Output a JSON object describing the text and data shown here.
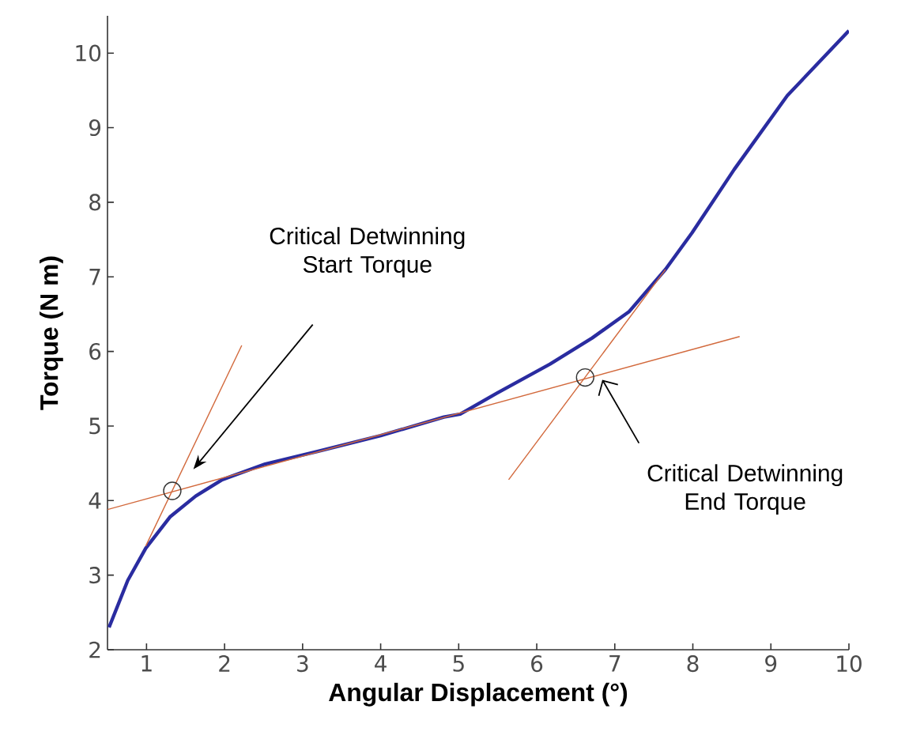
{
  "chart_data": {
    "type": "line",
    "xlabel": "Angular Displacement (°)",
    "ylabel": "Torque (N m)",
    "xlim": [
      0.5,
      10
    ],
    "ylim": [
      2,
      10.5
    ],
    "xticks": [
      1,
      2,
      3,
      4,
      5,
      6,
      7,
      8,
      9,
      10
    ],
    "yticks": [
      2,
      3,
      4,
      5,
      6,
      7,
      8,
      9,
      10
    ],
    "grid": false,
    "series": [
      {
        "color": "#2a2ca0",
        "x": [
          0.52,
          0.76,
          0.99,
          1.3,
          1.63,
          1.97,
          2.52,
          3.19,
          4.0,
          4.81,
          5.02,
          5.49,
          6.17,
          6.71,
          7.18,
          7.65,
          7.99,
          8.53,
          9.21,
          10.0
        ],
        "values": [
          2.3,
          2.93,
          3.36,
          3.78,
          4.06,
          4.28,
          4.49,
          4.66,
          4.87,
          5.12,
          5.16,
          5.44,
          5.83,
          6.18,
          6.53,
          7.1,
          7.59,
          8.44,
          9.43,
          10.3
        ]
      },
      {
        "color": "#d2693c",
        "x": [
          0.5,
          8.6
        ],
        "values": [
          3.88,
          6.2
        ]
      },
      {
        "color": "#d2693c",
        "x": [
          0.99,
          2.22
        ],
        "values": [
          3.39,
          6.08
        ]
      },
      {
        "color": "#d2693c",
        "x": [
          5.64,
          7.65
        ],
        "values": [
          4.28,
          7.1
        ]
      },
      {
        "type": "scatter",
        "marker": "circle",
        "color": "#333333",
        "x": [
          1.33,
          6.62
        ],
        "values": [
          4.13,
          5.65
        ]
      }
    ],
    "annotations": [
      "Critical Detwinning Start Torque",
      "Critical Detwinning End Torque"
    ]
  }
}
